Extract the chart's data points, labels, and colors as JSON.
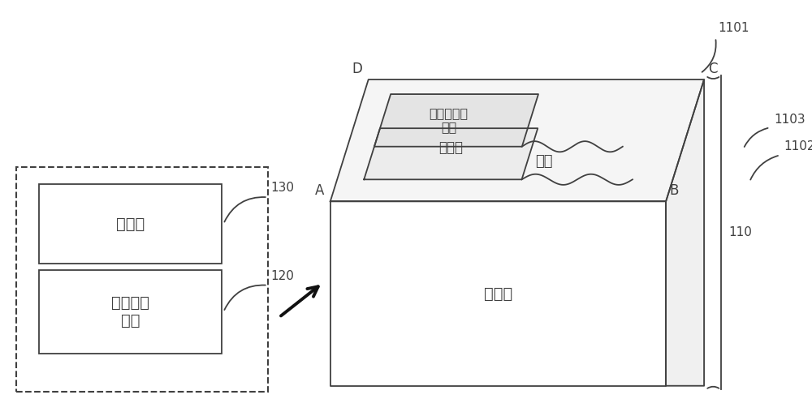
{
  "bg_color": "#ffffff",
  "line_color": "#404040",
  "label_A": "A",
  "label_B": "B",
  "label_C": "C",
  "label_D": "D",
  "label_110": "110",
  "label_1101": "1101",
  "label_1102": "1102",
  "label_1103": "1103",
  "label_120": "120",
  "label_130": "130",
  "text_controller": "控制器",
  "text_prompt": "填写提示\n装置",
  "text_table_area": "填表区",
  "text_sensor": "压力传感器\n阵列",
  "text_plane": "平面",
  "text_desk": "填表台"
}
